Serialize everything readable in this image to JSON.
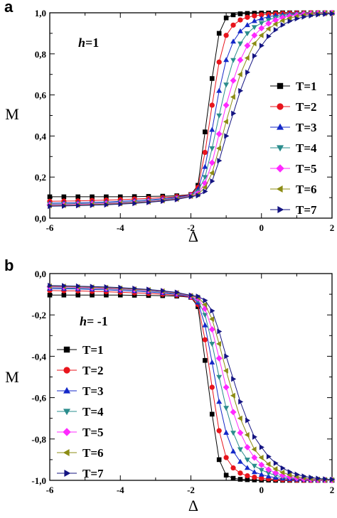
{
  "chart_data": [
    {
      "panel": "a",
      "type": "line",
      "xlabel": "Δ",
      "ylabel": "M",
      "annotation": {
        "var": "h",
        "rest": "=1"
      },
      "xlim": [
        -6,
        2
      ],
      "ylim": [
        0.0,
        1.0
      ],
      "xticks": [
        "-6",
        "-4",
        "-2",
        "0",
        "2"
      ],
      "yticks": [
        "0,0",
        "0,2",
        "0,4",
        "0,6",
        "0,8",
        "1,0"
      ],
      "legend_position": "right",
      "x": [
        -6.0,
        -5.6,
        -5.2,
        -4.8,
        -4.4,
        -4.0,
        -3.6,
        -3.2,
        -2.8,
        -2.4,
        -2.0,
        -1.8,
        -1.6,
        -1.4,
        -1.2,
        -1.0,
        -0.8,
        -0.6,
        -0.4,
        -0.2,
        0.0,
        0.2,
        0.4,
        0.6,
        0.8,
        1.0,
        1.2,
        1.4,
        1.6,
        1.8,
        2.0
      ],
      "series": [
        {
          "name": "T=1",
          "marker": "square",
          "color": "#000000",
          "values": [
            0.104,
            0.104,
            0.104,
            0.104,
            0.104,
            0.104,
            0.105,
            0.106,
            0.107,
            0.109,
            0.115,
            0.16,
            0.42,
            0.68,
            0.9,
            0.975,
            0.99,
            0.995,
            0.997,
            0.998,
            0.999,
            0.999,
            1.0,
            1.0,
            1.0,
            1.0,
            1.0,
            1.0,
            1.0,
            1.0,
            1.0
          ]
        },
        {
          "name": "T=2",
          "marker": "circle",
          "color": "#e8141c",
          "values": [
            0.082,
            0.083,
            0.084,
            0.086,
            0.088,
            0.09,
            0.093,
            0.096,
            0.1,
            0.105,
            0.115,
            0.15,
            0.32,
            0.55,
            0.76,
            0.89,
            0.94,
            0.965,
            0.978,
            0.985,
            0.99,
            0.993,
            0.995,
            0.997,
            0.998,
            0.999,
            0.999,
            1.0,
            1.0,
            1.0,
            1.0
          ]
        },
        {
          "name": "T=3",
          "marker": "triangle-up",
          "color": "#1428c8",
          "values": [
            0.073,
            0.074,
            0.075,
            0.077,
            0.079,
            0.082,
            0.085,
            0.089,
            0.094,
            0.101,
            0.113,
            0.14,
            0.25,
            0.43,
            0.62,
            0.77,
            0.86,
            0.91,
            0.94,
            0.96,
            0.972,
            0.981,
            0.987,
            0.991,
            0.994,
            0.996,
            0.997,
            0.998,
            0.999,
            0.999,
            1.0
          ]
        },
        {
          "name": "T=4",
          "marker": "triangle-down",
          "color": "#2a8c8c",
          "values": [
            0.068,
            0.069,
            0.071,
            0.072,
            0.074,
            0.077,
            0.08,
            0.084,
            0.09,
            0.098,
            0.111,
            0.13,
            0.2,
            0.34,
            0.5,
            0.65,
            0.77,
            0.85,
            0.9,
            0.93,
            0.95,
            0.965,
            0.976,
            0.984,
            0.989,
            0.993,
            0.995,
            0.997,
            0.998,
            0.999,
            0.999
          ]
        },
        {
          "name": "T=5",
          "marker": "diamond",
          "color": "#ff28ff",
          "values": [
            0.064,
            0.065,
            0.067,
            0.069,
            0.071,
            0.074,
            0.077,
            0.081,
            0.087,
            0.095,
            0.109,
            0.12,
            0.17,
            0.27,
            0.41,
            0.55,
            0.67,
            0.77,
            0.84,
            0.89,
            0.925,
            0.948,
            0.964,
            0.976,
            0.984,
            0.989,
            0.993,
            0.995,
            0.997,
            0.998,
            0.999
          ]
        },
        {
          "name": "T=6",
          "marker": "triangle-left",
          "color": "#8c8c14",
          "values": [
            0.061,
            0.062,
            0.064,
            0.066,
            0.068,
            0.071,
            0.075,
            0.079,
            0.085,
            0.093,
            0.107,
            0.115,
            0.15,
            0.22,
            0.34,
            0.47,
            0.59,
            0.7,
            0.78,
            0.85,
            0.89,
            0.922,
            0.945,
            0.962,
            0.974,
            0.982,
            0.988,
            0.992,
            0.995,
            0.997,
            0.998
          ]
        },
        {
          "name": "T=7",
          "marker": "triangle-right",
          "color": "#141482",
          "values": [
            0.058,
            0.059,
            0.061,
            0.063,
            0.065,
            0.068,
            0.072,
            0.077,
            0.083,
            0.091,
            0.105,
            0.11,
            0.13,
            0.18,
            0.28,
            0.4,
            0.51,
            0.62,
            0.71,
            0.79,
            0.84,
            0.885,
            0.917,
            0.941,
            0.959,
            0.971,
            0.98,
            0.986,
            0.991,
            0.994,
            0.996
          ]
        }
      ]
    },
    {
      "panel": "b",
      "type": "line",
      "xlabel": "Δ",
      "ylabel": "M",
      "annotation": {
        "var": "h",
        "rest": "= -1"
      },
      "xlim": [
        -6,
        2
      ],
      "ylim": [
        -1.0,
        0.0
      ],
      "xticks": [
        "-6",
        "-4",
        "-2",
        "0",
        "2"
      ],
      "yticks": [
        "-1,0",
        "-0,8",
        "-0,6",
        "-0,4",
        "-0,2",
        "0,0"
      ],
      "legend_position": "left",
      "x": [
        -6.0,
        -5.6,
        -5.2,
        -4.8,
        -4.4,
        -4.0,
        -3.6,
        -3.2,
        -2.8,
        -2.4,
        -2.0,
        -1.8,
        -1.6,
        -1.4,
        -1.2,
        -1.0,
        -0.8,
        -0.6,
        -0.4,
        -0.2,
        0.0,
        0.2,
        0.4,
        0.6,
        0.8,
        1.0,
        1.2,
        1.4,
        1.6,
        1.8,
        2.0
      ],
      "series": [
        {
          "name": "T=1",
          "marker": "square",
          "color": "#000000",
          "values": [
            -0.104,
            -0.104,
            -0.104,
            -0.104,
            -0.104,
            -0.104,
            -0.105,
            -0.106,
            -0.107,
            -0.109,
            -0.115,
            -0.16,
            -0.42,
            -0.68,
            -0.9,
            -0.975,
            -0.99,
            -0.995,
            -0.997,
            -0.998,
            -0.999,
            -0.999,
            -1.0,
            -1.0,
            -1.0,
            -1.0,
            -1.0,
            -1.0,
            -1.0,
            -1.0,
            -1.0
          ]
        },
        {
          "name": "T=2",
          "marker": "circle",
          "color": "#e8141c",
          "values": [
            -0.082,
            -0.083,
            -0.084,
            -0.086,
            -0.088,
            -0.09,
            -0.093,
            -0.096,
            -0.1,
            -0.105,
            -0.115,
            -0.15,
            -0.32,
            -0.55,
            -0.76,
            -0.89,
            -0.94,
            -0.965,
            -0.978,
            -0.985,
            -0.99,
            -0.993,
            -0.995,
            -0.997,
            -0.998,
            -0.999,
            -0.999,
            -1.0,
            -1.0,
            -1.0,
            -1.0
          ]
        },
        {
          "name": "T=3",
          "marker": "triangle-up",
          "color": "#1428c8",
          "values": [
            -0.073,
            -0.074,
            -0.075,
            -0.077,
            -0.079,
            -0.082,
            -0.085,
            -0.089,
            -0.094,
            -0.101,
            -0.113,
            -0.14,
            -0.25,
            -0.43,
            -0.62,
            -0.77,
            -0.86,
            -0.91,
            -0.94,
            -0.96,
            -0.972,
            -0.981,
            -0.987,
            -0.991,
            -0.994,
            -0.996,
            -0.997,
            -0.998,
            -0.999,
            -0.999,
            -1.0
          ]
        },
        {
          "name": "T=4",
          "marker": "triangle-down",
          "color": "#2a8c8c",
          "values": [
            -0.068,
            -0.069,
            -0.071,
            -0.072,
            -0.074,
            -0.077,
            -0.08,
            -0.084,
            -0.09,
            -0.098,
            -0.111,
            -0.13,
            -0.2,
            -0.34,
            -0.5,
            -0.65,
            -0.77,
            -0.85,
            -0.9,
            -0.93,
            -0.95,
            -0.965,
            -0.976,
            -0.984,
            -0.989,
            -0.993,
            -0.995,
            -0.997,
            -0.998,
            -0.999,
            -0.999
          ]
        },
        {
          "name": "T=5",
          "marker": "diamond",
          "color": "#ff28ff",
          "values": [
            -0.064,
            -0.065,
            -0.067,
            -0.069,
            -0.071,
            -0.074,
            -0.077,
            -0.081,
            -0.087,
            -0.095,
            -0.109,
            -0.12,
            -0.17,
            -0.27,
            -0.41,
            -0.55,
            -0.67,
            -0.77,
            -0.84,
            -0.89,
            -0.925,
            -0.948,
            -0.964,
            -0.976,
            -0.984,
            -0.989,
            -0.993,
            -0.995,
            -0.997,
            -0.998,
            -0.999
          ]
        },
        {
          "name": "T=6",
          "marker": "triangle-left",
          "color": "#8c8c14",
          "values": [
            -0.061,
            -0.062,
            -0.064,
            -0.066,
            -0.068,
            -0.071,
            -0.075,
            -0.079,
            -0.085,
            -0.093,
            -0.107,
            -0.115,
            -0.15,
            -0.22,
            -0.34,
            -0.47,
            -0.59,
            -0.7,
            -0.78,
            -0.85,
            -0.89,
            -0.922,
            -0.945,
            -0.962,
            -0.974,
            -0.982,
            -0.988,
            -0.992,
            -0.995,
            -0.997,
            -0.998
          ]
        },
        {
          "name": "T=7",
          "marker": "triangle-right",
          "color": "#141482",
          "values": [
            -0.058,
            -0.059,
            -0.061,
            -0.063,
            -0.065,
            -0.068,
            -0.072,
            -0.077,
            -0.083,
            -0.091,
            -0.105,
            -0.11,
            -0.13,
            -0.18,
            -0.28,
            -0.4,
            -0.51,
            -0.62,
            -0.71,
            -0.79,
            -0.84,
            -0.885,
            -0.917,
            -0.941,
            -0.959,
            -0.971,
            -0.98,
            -0.986,
            -0.991,
            -0.994,
            -0.996
          ]
        }
      ]
    }
  ]
}
